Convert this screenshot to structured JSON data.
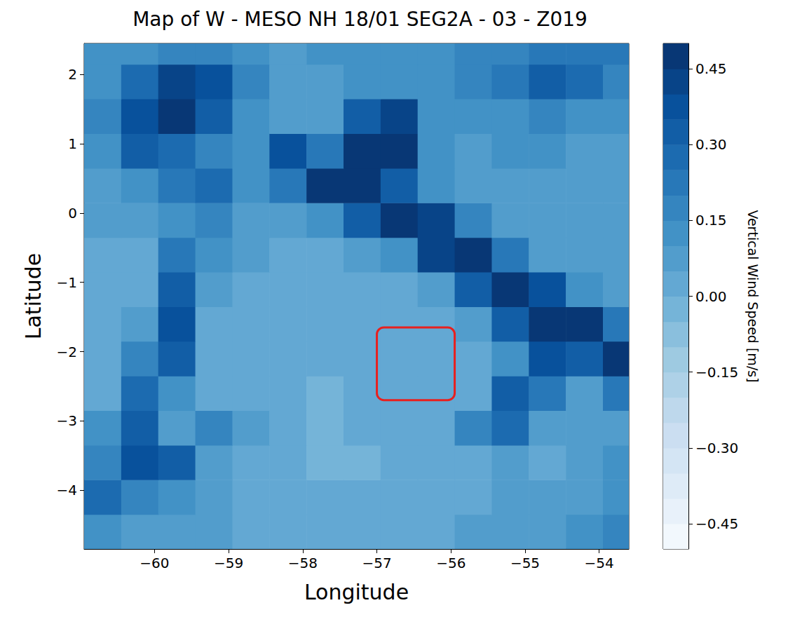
{
  "chart_data": {
    "type": "heatmap",
    "title": "Map of W - MESO NH 18/01 SEG2A - 03 - Z019",
    "x_label": "Longitude",
    "y_label": "Latitude",
    "xlim": [
      -60.95,
      -53.6
    ],
    "ylim": [
      -4.85,
      2.45
    ],
    "xticks": [
      {
        "value": -60,
        "label": "−60"
      },
      {
        "value": -59,
        "label": "−59"
      },
      {
        "value": -58,
        "label": "−58"
      },
      {
        "value": -57,
        "label": "−57"
      },
      {
        "value": -56,
        "label": "−56"
      },
      {
        "value": -55,
        "label": "−55"
      },
      {
        "value": -54,
        "label": "−54"
      }
    ],
    "yticks": [
      {
        "value": -4,
        "label": "−4"
      },
      {
        "value": -3,
        "label": "−3"
      },
      {
        "value": -2,
        "label": "−2"
      },
      {
        "value": -1,
        "label": "−1"
      },
      0,
      1,
      2
    ],
    "grid": false,
    "x": [
      -60.7,
      -60.2,
      -59.7,
      -59.2,
      -58.7,
      -58.2,
      -57.7,
      -57.2,
      -56.7,
      -56.2,
      -55.7,
      -55.2,
      -54.7,
      -54.2,
      -53.7
    ],
    "y": [
      -4.6,
      -4.1,
      -3.6,
      -3.1,
      -2.6,
      -2.1,
      -1.6,
      -1.1,
      -0.6,
      -0.1,
      0.4,
      0.9,
      1.4,
      1.9,
      2.4
    ],
    "z": [
      [
        0.1,
        0.08,
        0.06,
        0.05,
        0.04,
        0.04,
        0.03,
        0.03,
        0.03,
        0.04,
        0.05,
        0.06,
        0.08,
        0.1,
        0.15
      ],
      [
        0.25,
        0.15,
        0.1,
        0.05,
        0.04,
        0.02,
        0.0,
        0.0,
        0.02,
        0.02,
        0.03,
        0.05,
        0.05,
        0.06,
        0.1
      ],
      [
        0.15,
        0.35,
        0.3,
        0.08,
        0.04,
        0.0,
        -0.02,
        -0.02,
        0.0,
        0.02,
        0.04,
        0.05,
        0.04,
        0.05,
        0.1
      ],
      [
        0.1,
        0.3,
        0.08,
        0.15,
        0.05,
        0.0,
        -0.02,
        0.0,
        0.0,
        0.02,
        0.15,
        0.25,
        0.06,
        0.05,
        0.08
      ],
      [
        0.04,
        0.25,
        0.1,
        0.02,
        0.01,
        0.0,
        -0.02,
        0.0,
        0.0,
        0.02,
        0.04,
        0.3,
        0.2,
        0.06,
        0.2
      ],
      [
        0.02,
        0.15,
        0.3,
        0.03,
        0.02,
        0.0,
        0.0,
        0.0,
        0.0,
        0.02,
        0.04,
        0.1,
        0.35,
        0.3,
        0.45
      ],
      [
        0.02,
        0.05,
        0.35,
        0.04,
        0.02,
        0.01,
        0.0,
        0.0,
        0.02,
        0.04,
        0.08,
        0.3,
        0.5,
        0.45,
        0.2
      ],
      [
        0.03,
        0.04,
        0.3,
        0.05,
        0.04,
        0.03,
        0.03,
        0.03,
        0.04,
        0.08,
        0.3,
        0.5,
        0.35,
        0.12,
        0.08
      ],
      [
        0.03,
        0.04,
        0.2,
        0.1,
        0.05,
        0.04,
        0.04,
        0.06,
        0.12,
        0.4,
        0.45,
        0.2,
        0.08,
        0.06,
        0.06
      ],
      [
        0.05,
        0.06,
        0.12,
        0.15,
        0.08,
        0.06,
        0.12,
        0.3,
        0.45,
        0.4,
        0.15,
        0.08,
        0.07,
        0.06,
        0.06
      ],
      [
        0.06,
        0.1,
        0.2,
        0.25,
        0.12,
        0.2,
        0.45,
        0.45,
        0.3,
        0.12,
        0.08,
        0.08,
        0.08,
        0.07,
        0.07
      ],
      [
        0.1,
        0.3,
        0.25,
        0.15,
        0.12,
        0.35,
        0.2,
        0.45,
        0.5,
        0.1,
        0.08,
        0.1,
        0.1,
        0.08,
        0.08
      ],
      [
        0.15,
        0.35,
        0.5,
        0.3,
        0.1,
        0.08,
        0.07,
        0.3,
        0.4,
        0.1,
        0.1,
        0.12,
        0.15,
        0.12,
        0.1
      ],
      [
        0.12,
        0.25,
        0.4,
        0.35,
        0.15,
        0.08,
        0.08,
        0.1,
        0.1,
        0.12,
        0.18,
        0.2,
        0.3,
        0.28,
        0.15
      ],
      [
        0.1,
        0.12,
        0.15,
        0.18,
        0.12,
        0.08,
        0.1,
        0.12,
        0.1,
        0.1,
        0.15,
        0.18,
        0.2,
        0.22,
        0.2
      ]
    ],
    "colorbar": {
      "label": "Vertical Wind Speed [m/s]",
      "range": [
        -0.5,
        0.5
      ],
      "levels": [
        -0.5,
        -0.45,
        -0.4,
        -0.35,
        -0.3,
        -0.25,
        -0.2,
        -0.15,
        -0.1,
        -0.05,
        0.0,
        0.05,
        0.1,
        0.15,
        0.2,
        0.25,
        0.3,
        0.35,
        0.4,
        0.45,
        0.5
      ],
      "colors": [
        "#f2f8fd",
        "#e8f1fa",
        "#deebf7",
        "#d4e5f4",
        "#cbdef1",
        "#bed8ec",
        "#aed1e7",
        "#9ecae1",
        "#8abfdd",
        "#75b4d8",
        "#63a8d3",
        "#529dcc",
        "#4292c6",
        "#3585bf",
        "#2878b8",
        "#1c6bb0",
        "#125ea6",
        "#08519c",
        "#084488",
        "#083775"
      ],
      "ticks": [
        {
          "value": -0.45,
          "label": "−0.45"
        },
        {
          "value": -0.3,
          "label": "−0.30"
        },
        {
          "value": -0.15,
          "label": "−0.15"
        },
        {
          "value": 0,
          "label": "0.00"
        },
        {
          "value": 0.15,
          "label": "0.15"
        },
        {
          "value": 0.3,
          "label": "0.30"
        },
        {
          "value": 0.45,
          "label": "0.45"
        }
      ]
    },
    "highlight_box": {
      "xlim": [
        -57.0,
        -55.95
      ],
      "ylim": [
        -2.7,
        -1.65
      ],
      "color": "#e8201e"
    }
  }
}
